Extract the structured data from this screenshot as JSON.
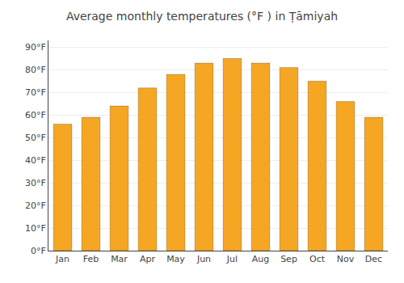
{
  "chart_data": {
    "type": "bar",
    "title": "Average monthly temperatures (°F ) in Ṭāmiyah",
    "categories": [
      "Jan",
      "Feb",
      "Mar",
      "Apr",
      "May",
      "Jun",
      "Jul",
      "Aug",
      "Sep",
      "Oct",
      "Nov",
      "Dec"
    ],
    "values": [
      56,
      59,
      64,
      72,
      78,
      83,
      85,
      83,
      81,
      75,
      66,
      59
    ],
    "color": "#F5A623",
    "ylim": [
      0,
      93
    ],
    "yticks": [
      {
        "value": 0,
        "label": "0°F"
      },
      {
        "value": 10,
        "label": "10°F"
      },
      {
        "value": 20,
        "label": "20°F"
      },
      {
        "value": 30,
        "label": "30°F"
      },
      {
        "value": 40,
        "label": "40°F"
      },
      {
        "value": 50,
        "label": "50°F"
      },
      {
        "value": 60,
        "label": "60°F"
      },
      {
        "value": 70,
        "label": "70°F"
      },
      {
        "value": 80,
        "label": "80°F"
      },
      {
        "value": 90,
        "label": "90°F"
      }
    ],
    "grid": true
  }
}
